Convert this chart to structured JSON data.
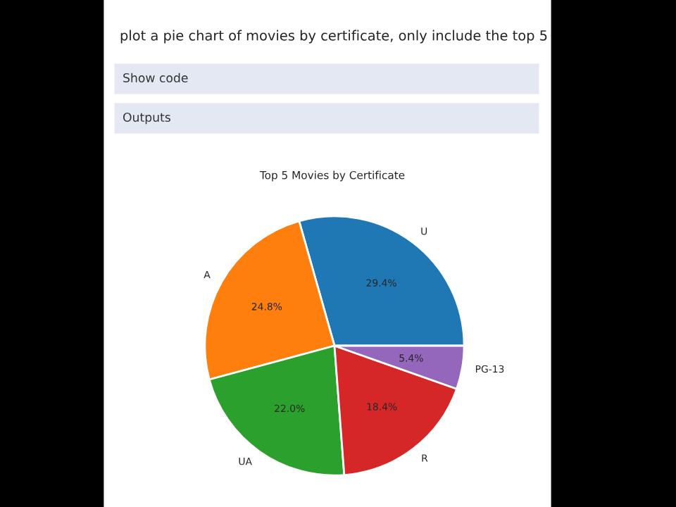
{
  "chart_data": {
    "type": "pie",
    "title": "Top 5 Movies by Certificate",
    "categories": [
      "U",
      "A",
      "UA",
      "R",
      "PG-13"
    ],
    "values": [
      29.4,
      24.8,
      22.0,
      18.4,
      5.4
    ],
    "value_labels": [
      "29.4%",
      "24.8%",
      "22.0%",
      "18.4%",
      "5.4%"
    ],
    "colors": [
      "#1f77b4",
      "#ff7f0e",
      "#2ca02c",
      "#d62728",
      "#9467bd"
    ],
    "annotations": [
      "plot a pie chart of movies by certificate, only include the top 5",
      "Show code",
      "Outputs"
    ]
  }
}
